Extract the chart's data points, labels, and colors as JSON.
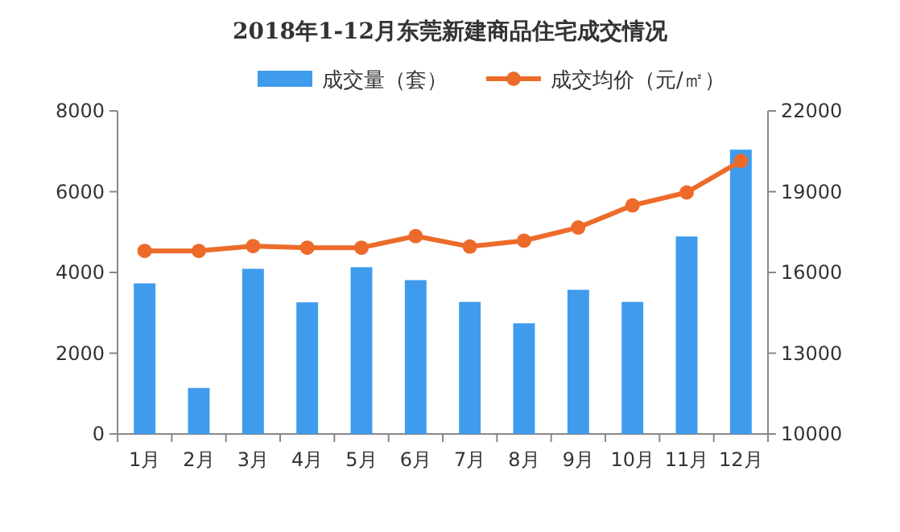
{
  "chart_data": {
    "type": "bar",
    "title": "2018年1-12月东莞新建商品住宅成交情况",
    "categories": [
      "1月",
      "2月",
      "3月",
      "4月",
      "5月",
      "6月",
      "7月",
      "8月",
      "9月",
      "10月",
      "11月",
      "12月"
    ],
    "series": [
      {
        "name": "成交量（套）",
        "color": "#3f9ced",
        "values": [
          3730,
          1140,
          4090,
          3260,
          4130,
          3810,
          3270,
          2740,
          3570,
          3270,
          4890,
          7040
        ]
      },
      {
        "name": "成交均价（元/㎡）",
        "type": "line",
        "axis": "y2",
        "color": "#ed6b2a",
        "marker": "circle",
        "values": [
          16800,
          16800,
          16980,
          16920,
          16920,
          17350,
          16960,
          17180,
          17670,
          18490,
          18970,
          20140
        ]
      }
    ],
    "ylim": [
      0,
      8000
    ],
    "yticks": [
      0,
      2000,
      4000,
      6000,
      8000
    ],
    "y2lim": [
      10000,
      22000
    ],
    "y2ticks": [
      10000,
      13000,
      16000,
      19000,
      22000
    ],
    "legend": "top",
    "grid": false
  }
}
